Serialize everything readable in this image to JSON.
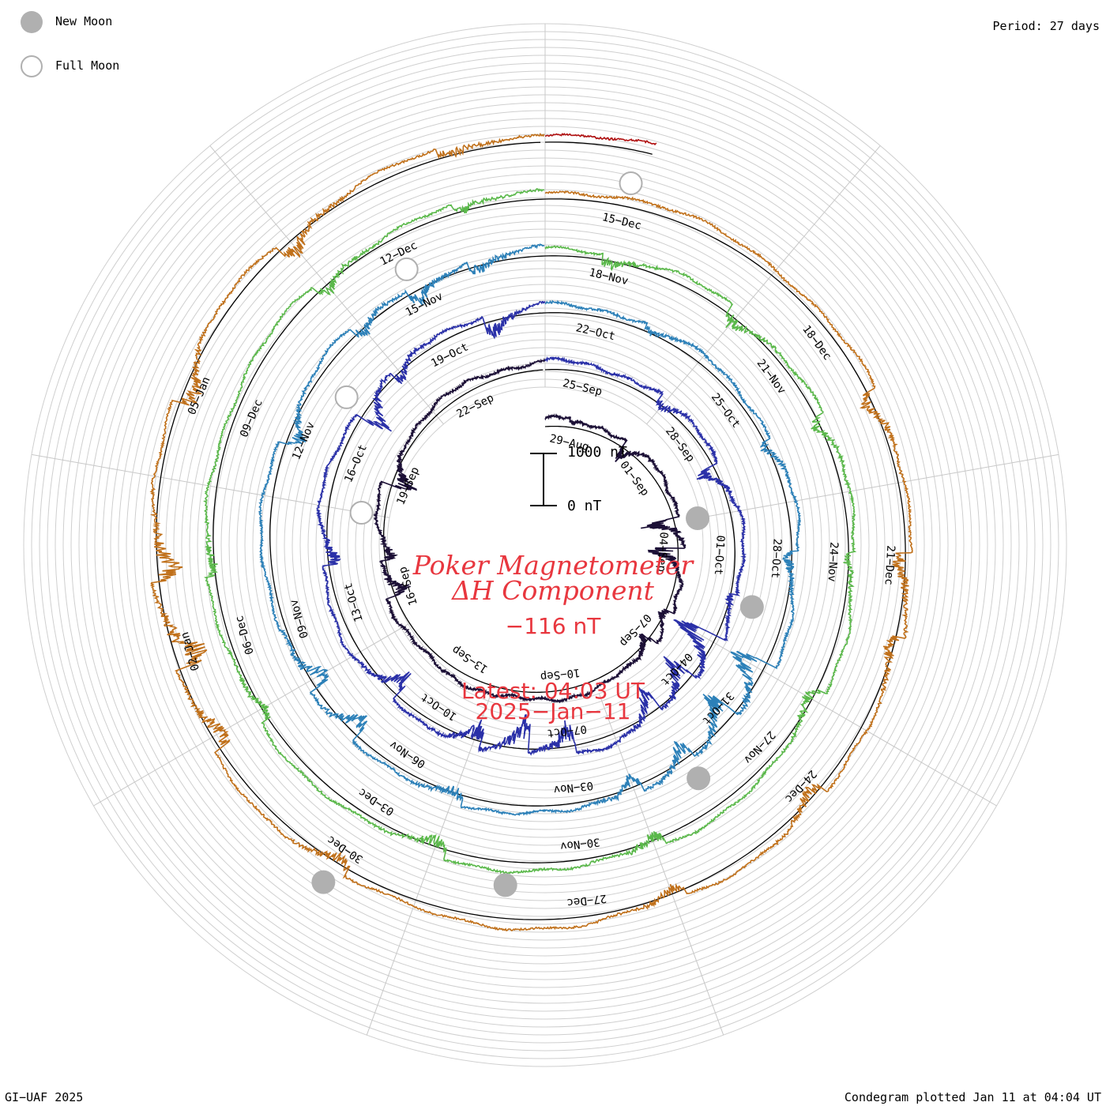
{
  "header": {
    "period": "Period: 27 days"
  },
  "legend": {
    "new_moon": {
      "label": "New Moon",
      "color": "#b0b0b0"
    },
    "full_moon": {
      "label": "Full Moon",
      "color": "#b0b0b0"
    }
  },
  "title": {
    "line1": "Poker Magnetometer",
    "line2": "ΔH Component",
    "current_value": "−116 nT",
    "latest": "Latest: 04:03 UT",
    "date": "2025−Jan−11"
  },
  "scale_bar": {
    "top_label": "1000 nT",
    "bottom_label": "0 nT"
  },
  "footer": {
    "left": "GI−UAF 2025",
    "right": "Condegram plotted Jan 11 at 04:04 UT"
  },
  "chart_data": {
    "type": "line",
    "projection": "polar spiral (condegram), one revolution per 27 days",
    "period_days": 27,
    "units": "nT",
    "tick_labels": [
      "29−Aug",
      "01−Sep",
      "04−Sep",
      "07−Sep",
      "10−Sep",
      "13−Sep",
      "16−Sep",
      "19−Sep",
      "22−Sep",
      "25−Sep",
      "28−Sep",
      "01−Oct",
      "04−Oct",
      "07−Oct",
      "10−Oct",
      "13−Oct",
      "16−Oct",
      "19−Oct",
      "22−Oct",
      "25−Oct",
      "28−Oct",
      "31−Oct",
      "03−Nov",
      "06−Nov",
      "09−Nov",
      "12−Nov",
      "15−Nov",
      "18−Nov",
      "21−Nov",
      "24−Nov",
      "27−Nov",
      "30−Nov",
      "03−Dec",
      "06−Dec",
      "09−Dec",
      "12−Dec",
      "15−Dec",
      "18−Dec",
      "21−Dec",
      "24−Dec",
      "27−Dec",
      "30−Dec",
      "02−Jan",
      "05−Jan"
    ],
    "series": [
      {
        "start": "2024-08-28",
        "color": "#1c1036",
        "disturbance": [
          [
            1,
            -120
          ],
          [
            3,
            -380
          ],
          [
            6,
            -620
          ],
          [
            7,
            -720
          ],
          [
            9,
            -240
          ],
          [
            10,
            -320
          ],
          [
            19,
            -460
          ],
          [
            20,
            -300
          ],
          [
            22,
            -540
          ]
        ]
      },
      {
        "start": "2024-09-24",
        "color": "#2a30a8",
        "disturbance": [
          [
            3,
            -260
          ],
          [
            5,
            -420
          ],
          [
            8,
            -180
          ],
          [
            9,
            -900
          ],
          [
            10,
            -640
          ],
          [
            11,
            -520
          ],
          [
            13,
            -580
          ],
          [
            14,
            -700
          ],
          [
            15,
            -480
          ],
          [
            17,
            -500
          ],
          [
            20,
            -340
          ],
          [
            23,
            -600
          ],
          [
            24,
            -320
          ],
          [
            26,
            -420
          ]
        ]
      },
      {
        "start": "2024-10-21",
        "color": "#2c80b8",
        "disturbance": [
          [
            2,
            -160
          ],
          [
            5,
            -220
          ],
          [
            7,
            -260
          ],
          [
            9,
            -820
          ],
          [
            10,
            -640
          ],
          [
            11,
            -420
          ],
          [
            12,
            -380
          ],
          [
            15,
            -300
          ],
          [
            17,
            -460
          ],
          [
            18,
            -520
          ],
          [
            22,
            -360
          ],
          [
            24,
            -280
          ],
          [
            25,
            -340
          ],
          [
            26,
            -300
          ]
        ]
      },
      {
        "start": "2024-11-17",
        "color": "#5ab84a",
        "disturbance": [
          [
            1,
            -240
          ],
          [
            3,
            -320
          ],
          [
            5,
            -280
          ],
          [
            7,
            -180
          ],
          [
            9,
            -300
          ],
          [
            12,
            -260
          ],
          [
            15,
            -340
          ],
          [
            18,
            -240
          ],
          [
            20,
            -220
          ],
          [
            24,
            -280
          ],
          [
            26,
            -200
          ]
        ]
      },
      {
        "start": "2024-12-14",
        "color": "#c0701a",
        "disturbance": [
          [
            5,
            -320
          ],
          [
            7,
            -380
          ],
          [
            8,
            -340
          ],
          [
            10,
            -300
          ],
          [
            12,
            -240
          ],
          [
            16,
            -280
          ],
          [
            18,
            -420
          ],
          [
            19,
            -680
          ],
          [
            20,
            -560
          ],
          [
            22,
            -440
          ],
          [
            24,
            -360
          ],
          [
            26,
            -220
          ]
        ]
      },
      {
        "start": "2025-01-10",
        "color": "#b01010",
        "disturbance": []
      }
    ],
    "new_moons": [
      "2024-09-03",
      "2024-10-02",
      "2024-11-01",
      "2024-12-01",
      "2024-12-30"
    ],
    "full_moons": [
      "2024-09-18",
      "2024-10-17",
      "2024-11-15",
      "2024-12-15"
    ],
    "current_value_nT": -116
  }
}
